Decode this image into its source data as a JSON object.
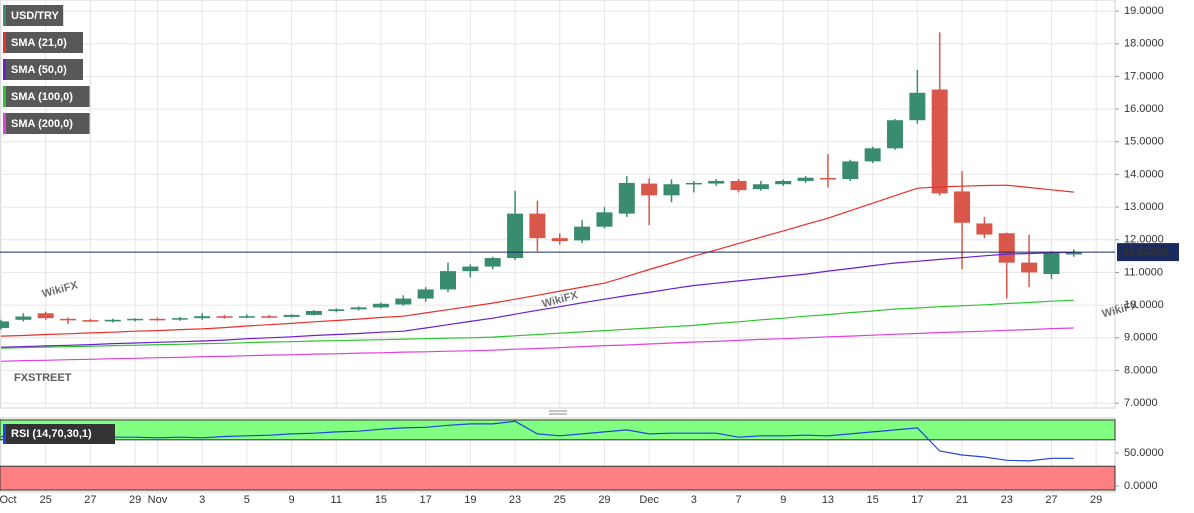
{
  "chart_data": [
    {
      "type": "candlestick",
      "logo": "FXSTREET",
      "watermark": "WikiFX",
      "categories": [
        "Oct",
        null,
        "25",
        null,
        "27",
        null,
        "29",
        "Nov",
        null,
        "3",
        null,
        "5",
        null,
        "9",
        null,
        "11",
        null,
        "15",
        null,
        "17",
        null,
        "19",
        null,
        "23",
        null,
        "25",
        null,
        "29",
        null,
        "Dec",
        null,
        "3",
        null,
        "7",
        null,
        "9",
        null,
        "13",
        null,
        "15",
        null,
        "17",
        null,
        "21",
        null,
        "23",
        null,
        "27",
        null,
        "29"
      ],
      "ylim": [
        6.85,
        19.34
      ],
      "yticks": [
        {
          "value": 7,
          "label": "7.0000"
        },
        {
          "value": 8,
          "label": "8.0000"
        },
        {
          "value": 9,
          "label": "9.0000"
        },
        {
          "value": 10,
          "label": "10.0000"
        },
        {
          "value": 11,
          "label": "11.0000"
        },
        {
          "value": 12,
          "label": "12.0000"
        },
        {
          "value": 13,
          "label": "13.0000"
        },
        {
          "value": 14,
          "label": "14.0000"
        },
        {
          "value": 15,
          "label": "15.0000"
        },
        {
          "value": 16,
          "label": "16.0000"
        },
        {
          "value": 17,
          "label": "17.0000"
        },
        {
          "value": 18,
          "label": "18.0000"
        },
        {
          "value": 19,
          "label": "19.0000"
        }
      ],
      "grid": true,
      "last_price": {
        "value": 11.6226,
        "label": "11.62260",
        "color": "#1b2b5e"
      },
      "series": [
        {
          "name": "USD/TRY",
          "color": "#3a8c70",
          "up_color": "#3a8c70",
          "down_color": "#d9574a",
          "open": [
            9.3,
            9.55,
            9.75,
            9.58,
            9.54,
            9.5,
            9.55,
            9.58,
            9.56,
            9.6,
            9.66,
            9.63,
            9.66,
            9.64,
            9.7,
            9.82,
            9.87,
            9.93,
            10.02,
            10.2,
            10.48,
            11.04,
            11.18,
            11.44,
            12.8,
            12.05,
            11.98,
            12.4,
            12.8,
            13.72,
            13.36,
            13.7,
            13.72,
            13.8,
            13.55,
            13.7,
            13.8,
            13.89,
            13.86,
            14.4,
            14.8,
            15.66,
            16.6,
            13.48,
            12.5,
            12.2,
            11.3,
            10.95,
            11.55,
            null
          ],
          "high": [
            9.55,
            9.75,
            9.8,
            9.62,
            9.58,
            9.58,
            9.6,
            9.62,
            9.64,
            9.75,
            9.7,
            9.72,
            9.7,
            9.72,
            9.85,
            9.9,
            9.96,
            10.08,
            10.3,
            10.55,
            11.3,
            11.25,
            11.48,
            13.5,
            13.2,
            12.2,
            12.6,
            13.0,
            13.95,
            13.88,
            13.85,
            13.8,
            13.86,
            13.86,
            13.8,
            13.84,
            13.95,
            14.62,
            14.45,
            14.85,
            15.7,
            17.2,
            18.35,
            14.1,
            12.7,
            12.22,
            12.15,
            11.65,
            11.7,
            null
          ],
          "low": [
            9.25,
            9.5,
            9.55,
            9.42,
            9.48,
            9.47,
            9.5,
            9.52,
            9.52,
            9.55,
            9.58,
            9.6,
            9.6,
            9.62,
            9.68,
            9.78,
            9.84,
            9.9,
            9.98,
            10.1,
            10.4,
            10.85,
            11.1,
            11.38,
            11.65,
            11.85,
            11.9,
            12.35,
            12.7,
            12.45,
            13.15,
            13.45,
            13.65,
            13.45,
            13.5,
            13.65,
            13.74,
            13.6,
            13.8,
            14.35,
            14.75,
            15.55,
            13.35,
            11.1,
            12.05,
            10.2,
            10.55,
            10.8,
            11.48,
            null
          ],
          "close": [
            9.5,
            9.65,
            9.6,
            9.54,
            9.5,
            9.55,
            9.58,
            9.56,
            9.6,
            9.66,
            9.63,
            9.66,
            9.64,
            9.7,
            9.82,
            9.87,
            9.93,
            10.04,
            10.2,
            10.48,
            11.04,
            11.18,
            11.44,
            12.8,
            12.05,
            11.96,
            12.4,
            12.84,
            13.74,
            13.36,
            13.7,
            13.74,
            13.8,
            13.52,
            13.7,
            13.8,
            13.9,
            13.86,
            14.4,
            14.8,
            15.66,
            16.5,
            13.42,
            12.52,
            12.16,
            11.3,
            11.0,
            11.6,
            11.62,
            null
          ]
        },
        {
          "name": "SMA (21,0)",
          "color": "#e8302a",
          "values": [
            9.05,
            9.07,
            9.1,
            9.12,
            9.15,
            9.17,
            9.2,
            9.22,
            9.25,
            9.27,
            9.31,
            9.36,
            9.4,
            9.44,
            9.49,
            9.53,
            9.57,
            9.62,
            9.66,
            9.76,
            9.86,
            9.96,
            10.06,
            10.18,
            10.3,
            10.43,
            10.55,
            10.67,
            10.88,
            11.09,
            11.29,
            11.5,
            11.69,
            11.89,
            12.08,
            12.27,
            12.47,
            12.66,
            12.89,
            13.12,
            13.35,
            13.58,
            13.62,
            13.64,
            13.66,
            13.67,
            13.6,
            13.53,
            13.46,
            null
          ]
        },
        {
          "name": "SMA (50,0)",
          "color": "#6a1fd0",
          "values": [
            8.71,
            8.73,
            8.75,
            8.77,
            8.79,
            8.82,
            8.84,
            8.86,
            8.88,
            8.9,
            8.93,
            8.97,
            9.0,
            9.03,
            9.07,
            9.1,
            9.13,
            9.17,
            9.2,
            9.3,
            9.4,
            9.5,
            9.6,
            9.72,
            9.84,
            9.95,
            10.07,
            10.18,
            10.29,
            10.39,
            10.5,
            10.6,
            10.67,
            10.74,
            10.81,
            10.88,
            10.95,
            11.04,
            11.12,
            11.21,
            11.29,
            11.34,
            11.4,
            11.45,
            11.51,
            11.56,
            11.58,
            11.6,
            11.62,
            null
          ]
        },
        {
          "name": "SMA (100,0)",
          "color": "#2fc42f",
          "values": [
            8.68,
            8.7,
            8.71,
            8.73,
            8.74,
            8.76,
            8.77,
            8.79,
            8.8,
            8.82,
            8.83,
            8.85,
            8.87,
            8.88,
            8.9,
            8.91,
            8.93,
            8.94,
            8.96,
            8.97,
            8.99,
            9.0,
            9.02,
            9.06,
            9.1,
            9.14,
            9.18,
            9.22,
            9.26,
            9.3,
            9.34,
            9.38,
            9.44,
            9.49,
            9.55,
            9.6,
            9.66,
            9.71,
            9.77,
            9.82,
            9.88,
            9.91,
            9.95,
            9.98,
            10.01,
            10.05,
            10.08,
            10.12,
            10.15,
            null
          ]
        },
        {
          "name": "SMA (200,0)",
          "color": "#e040e0",
          "values": [
            8.28,
            8.3,
            8.31,
            8.33,
            8.34,
            8.36,
            8.37,
            8.39,
            8.4,
            8.42,
            8.43,
            8.45,
            8.47,
            8.48,
            8.5,
            8.51,
            8.53,
            8.54,
            8.56,
            8.57,
            8.59,
            8.6,
            8.62,
            8.65,
            8.67,
            8.7,
            8.73,
            8.76,
            8.78,
            8.81,
            8.84,
            8.87,
            8.89,
            8.92,
            8.95,
            8.97,
            9.0,
            9.03,
            9.05,
            9.08,
            9.11,
            9.13,
            9.16,
            9.18,
            9.2,
            9.23,
            9.25,
            9.28,
            9.3,
            null
          ]
        }
      ]
    },
    {
      "type": "line",
      "ylim": [
        -9,
        103
      ],
      "yticks": [
        {
          "value": 50,
          "label": "50.0000"
        },
        {
          "value": 0,
          "label": "0.0000"
        }
      ],
      "bands": [
        {
          "from": 70,
          "to": 100,
          "color": "#80ff80"
        },
        {
          "from": -6,
          "to": 30,
          "color": "#ff8080"
        }
      ],
      "series": [
        {
          "name": "RSI (14,70,30,1)",
          "color": "#2244dd",
          "values": [
            75,
            74,
            76,
            74,
            73,
            74,
            74,
            73,
            74,
            73,
            75,
            76,
            77,
            79,
            80,
            82,
            83,
            86,
            88,
            89,
            92,
            94,
            94,
            98,
            79,
            76,
            79,
            82,
            85,
            79,
            80,
            80,
            80,
            74,
            76,
            76,
            77,
            76,
            79,
            82,
            85,
            88,
            53,
            47,
            44,
            39,
            38,
            42,
            42,
            null
          ]
        }
      ]
    }
  ]
}
